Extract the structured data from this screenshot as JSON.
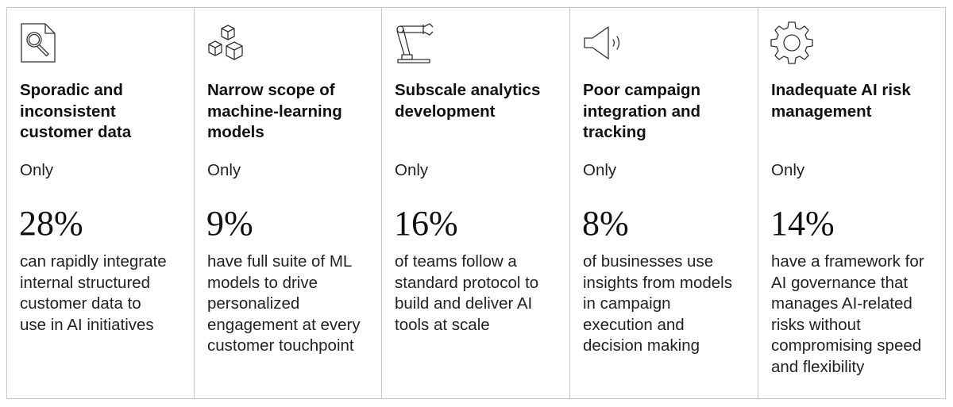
{
  "columns": [
    {
      "icon": "document-magnifier-icon",
      "title_lines": [
        "Sporadic and",
        "inconsistent",
        "customer data"
      ],
      "qualifier": "Only",
      "stat": "28%",
      "desc_lines": [
        "can rapidly integrate",
        "internal structured",
        "customer data to",
        "use in AI initiatives"
      ]
    },
    {
      "icon": "stacked-cubes-icon",
      "title_lines": [
        "Narrow scope of",
        "machine-learning",
        "models"
      ],
      "qualifier": "Only",
      "stat": "9%",
      "desc_lines": [
        "have full suite of ML",
        "models to drive",
        "personalized",
        "engagement at every",
        "customer touchpoint"
      ]
    },
    {
      "icon": "robotic-arm-icon",
      "title_lines": [
        "Subscale analytics",
        "development"
      ],
      "qualifier": "Only",
      "stat": "16%",
      "desc_lines": [
        "of teams follow a",
        "standard protocol to",
        "build and deliver AI",
        "tools at scale"
      ]
    },
    {
      "icon": "megaphone-icon",
      "title_lines": [
        "Poor campaign",
        "integration and",
        "tracking"
      ],
      "qualifier": "Only",
      "stat": "8%",
      "desc_lines": [
        "of businesses use",
        "insights from models",
        "in campaign",
        "execution and",
        "decision making"
      ]
    },
    {
      "icon": "gear-icon",
      "title_lines": [
        "Inadequate AI risk",
        "management"
      ],
      "qualifier": "Only",
      "stat": "14%",
      "desc_lines": [
        "have a framework for",
        "AI governance that",
        "manages AI-related",
        "risks without",
        "compromising speed",
        "and flexibility"
      ]
    }
  ]
}
